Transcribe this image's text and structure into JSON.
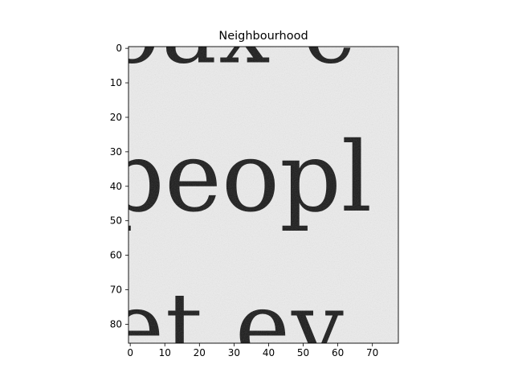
{
  "figure": {
    "background": "#ffffff"
  },
  "chart_data": {
    "type": "heatmap",
    "title": "Neighbourhood",
    "xlabel": "",
    "ylabel": "",
    "image_width": 78,
    "image_height": 86,
    "xlim": [
      -0.5,
      77.5
    ],
    "ylim": [
      85.5,
      -0.5
    ],
    "colormap": "gray",
    "grid": false,
    "x_ticks": [
      0,
      10,
      20,
      30,
      40,
      50,
      60,
      70
    ],
    "x_tick_labels": [
      "0",
      "10",
      "20",
      "30",
      "40",
      "50",
      "60",
      "70"
    ],
    "y_ticks": [
      0,
      10,
      20,
      30,
      40,
      50,
      60,
      70,
      80
    ],
    "y_tick_labels": [
      "0",
      "10",
      "20",
      "30",
      "40",
      "50",
      "60",
      "70",
      "80"
    ],
    "image_text": [
      {
        "text": "oax c",
        "row": 4
      },
      {
        "text": "peopl",
        "row": 47
      },
      {
        "text": "et ev",
        "row": 90
      }
    ],
    "paper_tone": "#ececec",
    "ink_tone": "#181818"
  }
}
